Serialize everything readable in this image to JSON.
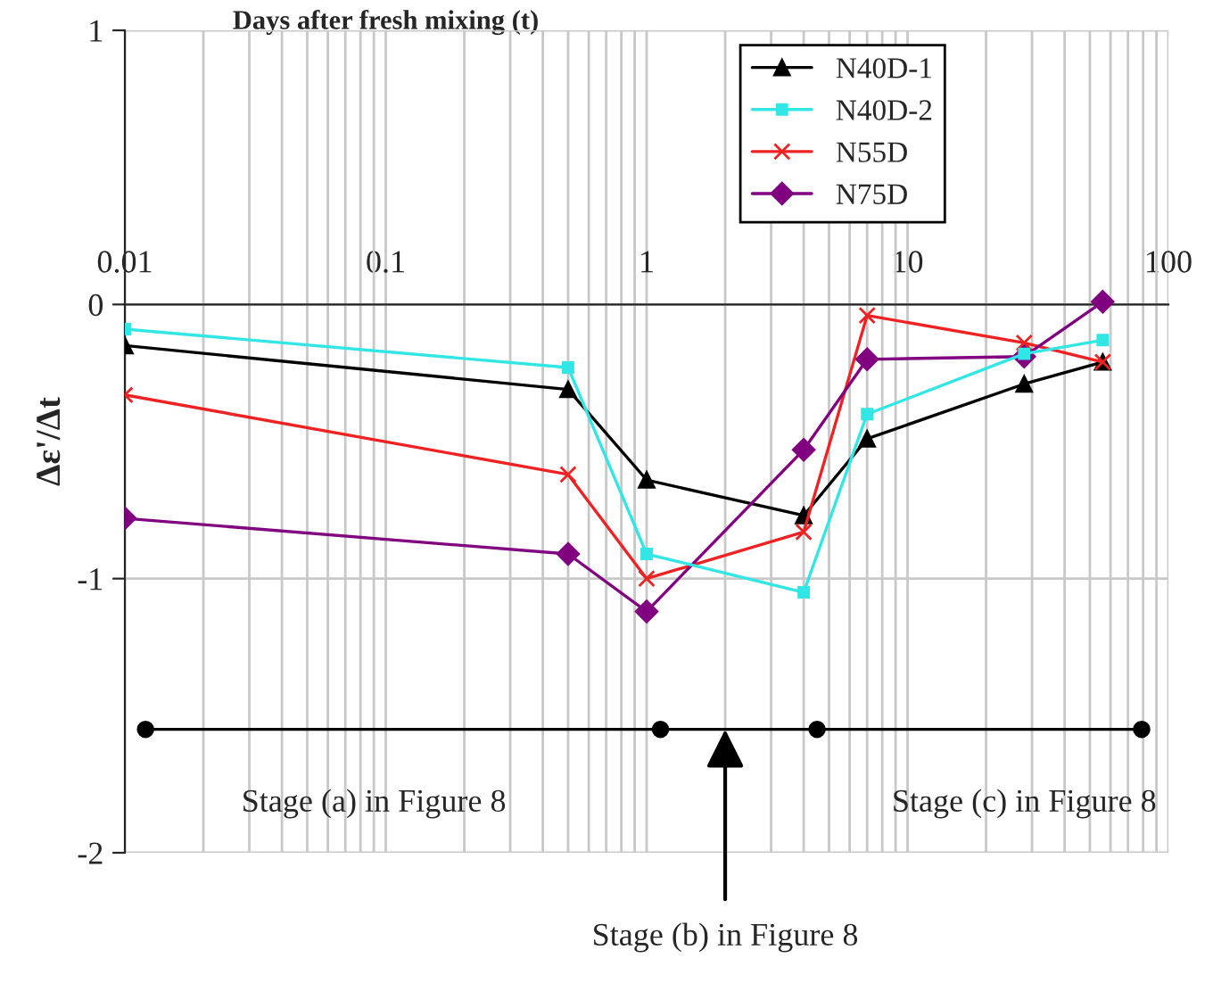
{
  "chart_data": {
    "type": "line",
    "xlabel": "Days after fresh mixing (t)",
    "ylabel": "Δε'/Δt",
    "log": "x",
    "xlim": [
      0.01,
      100
    ],
    "xticks": [
      0.01,
      0.1,
      1,
      10,
      100
    ],
    "ylim": [
      -2,
      1
    ],
    "yticks": [
      -2,
      -1,
      0,
      1
    ],
    "grid": true,
    "legend": "top right",
    "line_style": "solid",
    "series": [
      {
        "name": "N40D-1",
        "color": "#000000",
        "marker": "triangle",
        "x": [
          0.01,
          0.5,
          1,
          4,
          7,
          28,
          56
        ],
        "values": [
          -0.15,
          -0.31,
          -0.64,
          -0.77,
          -0.49,
          -0.29,
          -0.21
        ]
      },
      {
        "name": "N40D-2",
        "color": "#33e6e6",
        "marker": "square",
        "x": [
          0.01,
          0.5,
          1,
          4,
          7,
          28,
          56
        ],
        "values": [
          -0.09,
          -0.23,
          -0.91,
          -1.05,
          -0.4,
          -0.18,
          -0.13
        ]
      },
      {
        "name": "N55D",
        "color": "#ee2222",
        "marker": "cross",
        "x": [
          0.01,
          0.5,
          1,
          4,
          7,
          28,
          56
        ],
        "values": [
          -0.33,
          -0.62,
          -1.0,
          -0.83,
          -0.04,
          -0.14,
          -0.21
        ]
      },
      {
        "name": "N75D",
        "color": "#800080",
        "marker": "diamond",
        "x": [
          0.01,
          0.5,
          1,
          4,
          7,
          28,
          56
        ],
        "values": [
          -0.78,
          -0.91,
          -1.12,
          -0.53,
          -0.2,
          -0.19,
          0.01
        ]
      },
      {
        "color": "#000000",
        "marker": "circle",
        "x": [
          0.012,
          1.13,
          4.5,
          79
        ],
        "values": [
          -1.55,
          -1.55,
          -1.55,
          -1.55
        ]
      }
    ],
    "annotations": [
      {
        "text": "Stage (a) in Figure 8",
        "x": 0.09,
        "y": -1.55
      },
      {
        "text": "Stage (c) in Figure 8",
        "x": 28,
        "y": -1.55
      },
      {
        "text": "Stage (b) in Figure 8",
        "x": 2,
        "y": -1.55
      }
    ]
  }
}
